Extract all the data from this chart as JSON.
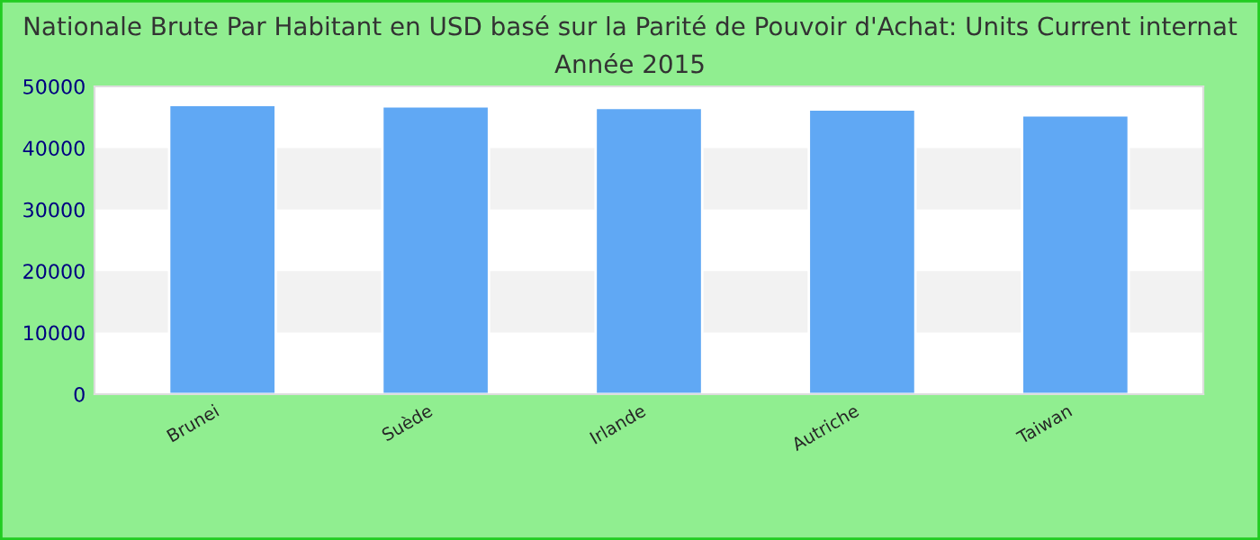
{
  "chart_data": {
    "type": "bar",
    "title": "Nationale Brute Par Habitant en USD basé sur la Parité de Pouvoir d'Achat: Units Current internat",
    "subtitle": "Année 2015",
    "categories": [
      "Brunei",
      "Suède",
      "Irlande",
      "Autriche",
      "Taiwan"
    ],
    "values": [
      47000,
      46750,
      46500,
      46250,
      45300
    ],
    "color": "#60a8f4",
    "ylim": [
      0,
      50000
    ],
    "yticks": [
      0,
      10000,
      20000,
      30000,
      40000,
      50000
    ],
    "bands": [
      {
        "axis": "y",
        "from": 10000,
        "to": 20000,
        "color": "#f2f2f2"
      },
      {
        "axis": "y",
        "from": 30000,
        "to": 40000,
        "color": "#f2f2f2"
      }
    ],
    "grid": false
  }
}
